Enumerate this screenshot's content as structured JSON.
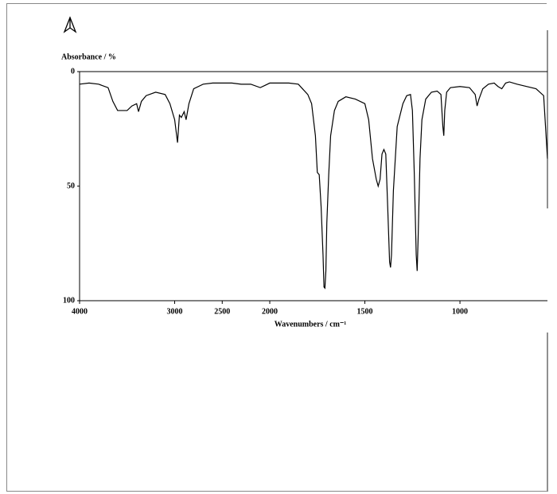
{
  "chart_data": {
    "type": "line",
    "ylabel": "Absorbance / %",
    "xlabel": "Wavenumbers / cm⁻¹",
    "x": [
      4000,
      3900,
      3800,
      3700,
      3650,
      3600,
      3500,
      3450,
      3400,
      3380,
      3350,
      3300,
      3200,
      3100,
      3050,
      3000,
      2970,
      2950,
      2930,
      2900,
      2880,
      2850,
      2800,
      2700,
      2600,
      2500,
      2400,
      2300,
      2200,
      2100,
      2050,
      2000,
      1900,
      1850,
      1800,
      1780,
      1760,
      1750,
      1740,
      1730,
      1720,
      1715,
      1710,
      1705,
      1700,
      1690,
      1680,
      1660,
      1640,
      1600,
      1550,
      1500,
      1480,
      1460,
      1440,
      1430,
      1420,
      1410,
      1400,
      1390,
      1380,
      1370,
      1365,
      1360,
      1350,
      1330,
      1300,
      1280,
      1260,
      1250,
      1240,
      1230,
      1225,
      1220,
      1210,
      1200,
      1180,
      1150,
      1120,
      1100,
      1090,
      1085,
      1080,
      1070,
      1050,
      1000,
      950,
      920,
      910,
      900,
      880,
      850,
      820,
      800,
      780,
      760,
      740,
      700,
      650,
      600,
      560,
      545,
      540
    ],
    "series": [
      {
        "color": "#000000",
        "values": [
          5.5,
          5,
          5.5,
          7,
          13,
          17,
          17,
          15,
          14,
          17.5,
          13,
          10.5,
          9,
          10,
          14,
          21,
          31,
          19,
          20,
          17.5,
          21,
          14,
          7.5,
          5.5,
          5,
          5,
          5,
          5.5,
          5.5,
          7,
          6,
          5,
          5,
          5.5,
          10,
          14,
          28,
          44,
          45,
          59,
          80,
          94,
          94.5,
          87,
          66,
          45,
          28,
          17,
          13,
          11,
          12,
          14,
          21,
          38,
          47,
          50,
          47,
          36,
          34,
          36,
          59,
          83,
          85.5,
          80,
          52,
          24,
          14,
          10.5,
          10,
          17,
          45,
          80,
          87,
          73,
          38,
          21,
          12,
          9,
          8.5,
          10,
          24,
          28,
          17,
          9,
          7,
          6.5,
          7,
          10,
          15,
          12,
          7.5,
          5.5,
          5,
          6.5,
          7.5,
          5,
          4.5,
          5.5,
          6.5,
          7.5,
          10.5,
          31,
          38
        ]
      }
    ],
    "xlim": [
      4000,
      540
    ],
    "xticks": [
      4000,
      3000,
      2500,
      2000,
      1500,
      1000
    ],
    "x_scale_break": 2000,
    "x_scale_ratio": 2,
    "ylim": [
      100,
      0
    ],
    "yticks": [
      0,
      50,
      100
    ]
  }
}
